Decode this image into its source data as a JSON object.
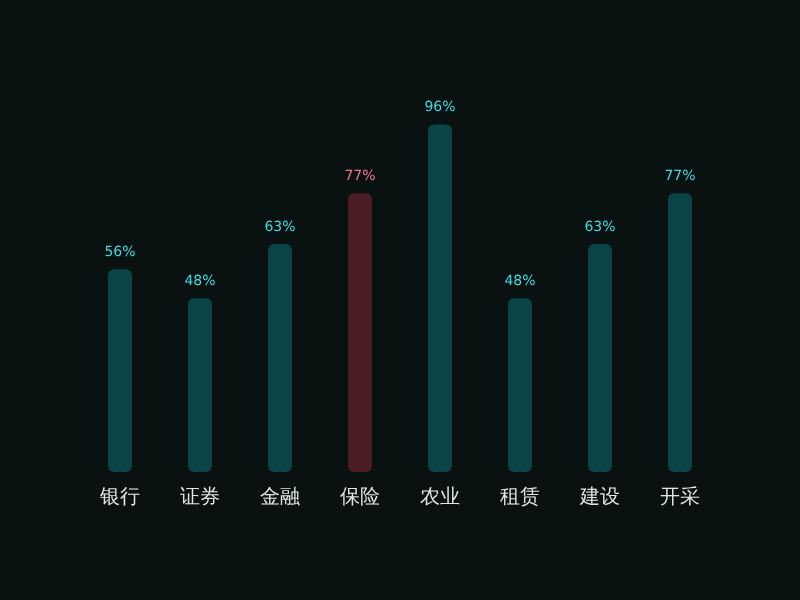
{
  "chart_data": {
    "type": "bar",
    "categories": [
      "银行",
      "证券",
      "金融",
      "保险",
      "农业",
      "租赁",
      "建设",
      "开采"
    ],
    "values": [
      56,
      48,
      63,
      77,
      96,
      48,
      63,
      77
    ],
    "value_labels": [
      "56%",
      "48%",
      "63%",
      "77%",
      "96%",
      "48%",
      "63%",
      "77%"
    ],
    "colors": [
      "#0a4447",
      "#0a4447",
      "#0a4447",
      "#4a1d25",
      "#0a4447",
      "#0a4447",
      "#0a4447",
      "#0a4447"
    ],
    "tick_labels": "x"
  }
}
